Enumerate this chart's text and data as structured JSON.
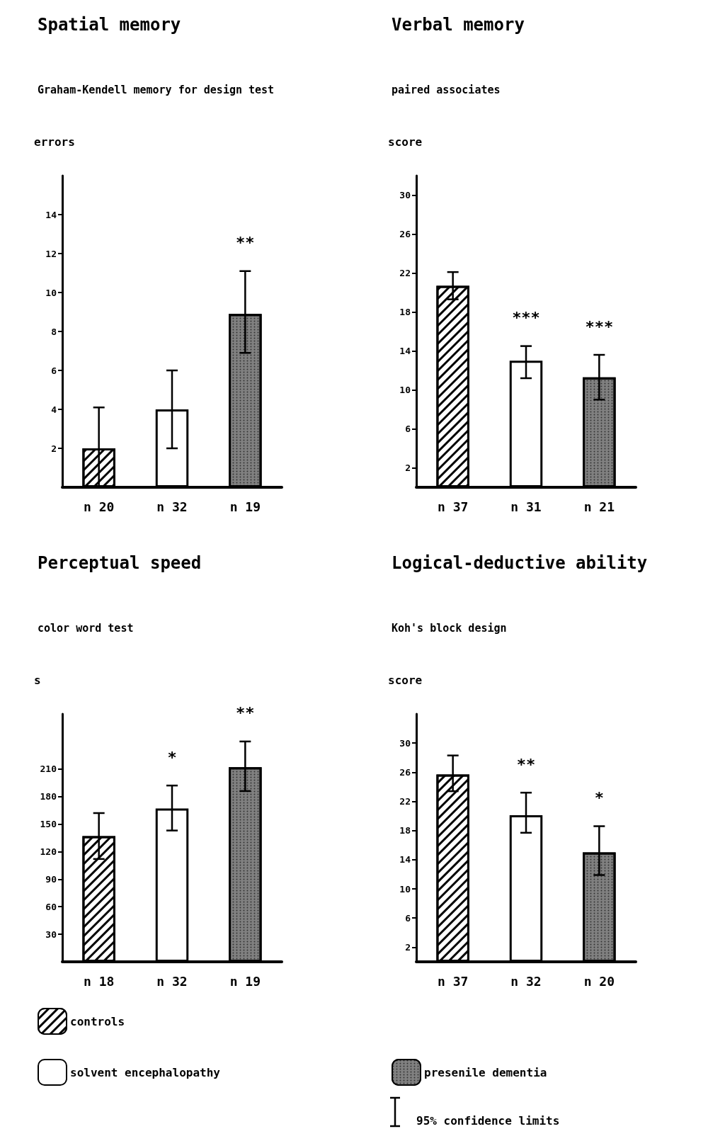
{
  "chart_data": [
    {
      "type": "bar",
      "title": "Spatial memory",
      "subtitle": "Graham-Kendell memory for design test",
      "ylabel": "errors",
      "categories": [
        "n 20",
        "n 32",
        "n 19"
      ],
      "ylim": [
        0,
        16
      ],
      "yticks": [
        2,
        4,
        6,
        8,
        10,
        12,
        14
      ],
      "series": [
        {
          "color": "#ffffff",
          "values": [
            2,
            null,
            null
          ],
          "errors": [
            [
              0,
              4.1
            ],
            null,
            null
          ]
        },
        {
          "color": "#ffffff",
          "values": [
            null,
            4,
            null
          ],
          "errors": [
            null,
            [
              2,
              6
            ],
            null
          ]
        },
        {
          "color": "#808080",
          "values": [
            null,
            null,
            8.9
          ],
          "errors": [
            null,
            null,
            [
              6.9,
              11.1
            ]
          ]
        }
      ],
      "annotations": [
        "**"
      ]
    },
    {
      "type": "bar",
      "title": "Verbal memory",
      "subtitle": "paired associates",
      "ylabel": "score",
      "categories": [
        "n 37",
        "n 31",
        "n 21"
      ],
      "ylim": [
        0,
        32
      ],
      "yticks": [
        2,
        6,
        10,
        14,
        18,
        22,
        26,
        30
      ],
      "series": [
        {
          "color": "#ffffff",
          "values": [
            20.7,
            null,
            null
          ],
          "errors": [
            [
              19.3,
              22.1
            ],
            null,
            null
          ]
        },
        {
          "color": "#ffffff",
          "values": [
            null,
            13,
            null
          ],
          "errors": [
            null,
            [
              11.2,
              14.5
            ],
            null
          ]
        },
        {
          "color": "#808080",
          "values": [
            null,
            null,
            11.3
          ],
          "errors": [
            null,
            null,
            [
              9,
              13.6
            ]
          ]
        }
      ],
      "annotations": [
        "***",
        "***"
      ]
    },
    {
      "type": "bar",
      "title": "Perceptual speed",
      "subtitle": "color word test",
      "ylabel": "s",
      "categories": [
        "n 18",
        "n 32",
        "n 19"
      ],
      "ylim": [
        0,
        270
      ],
      "yticks": [
        30,
        60,
        90,
        120,
        150,
        180,
        210
      ],
      "series": [
        {
          "name": "controls",
          "color": "#ffffff",
          "values": [
            137,
            null,
            null
          ],
          "errors": [
            [
              112,
              162
            ],
            null,
            null
          ]
        },
        {
          "name": "solvent encephalopathy",
          "color": "#ffffff",
          "values": [
            null,
            167,
            null
          ],
          "errors": [
            null,
            [
              143,
              192
            ],
            null
          ]
        },
        {
          "color": "#808080",
          "values": [
            null,
            null,
            212
          ],
          "errors": [
            null,
            null,
            [
              186,
              240
            ]
          ]
        }
      ],
      "annotations": [
        "*",
        "**"
      ],
      "legend": "bottom"
    },
    {
      "type": "bar",
      "title": "Logical-deductive ability",
      "subtitle": "Koh's block design",
      "ylabel": "score",
      "categories": [
        "n 37",
        "n 32",
        "n 20"
      ],
      "ylim": [
        0,
        34
      ],
      "yticks": [
        2,
        6,
        10,
        14,
        18,
        22,
        26,
        30
      ],
      "series": [
        {
          "color": "#ffffff",
          "values": [
            25.7,
            null,
            null
          ],
          "errors": [
            [
              23.4,
              28.3
            ],
            null,
            null
          ]
        },
        {
          "color": "#ffffff",
          "values": [
            null,
            20.1,
            null
          ],
          "errors": [
            null,
            [
              17.7,
              23.2
            ],
            null
          ]
        },
        {
          "name": "presenile dementia",
          "color": "#808080",
          "values": [
            null,
            null,
            15
          ],
          "errors": [
            null,
            null,
            [
              11.9,
              18.6
            ]
          ]
        }
      ],
      "annotations": [
        "**",
        "*",
        "95% confidence limits"
      ],
      "legend": "bottom"
    }
  ]
}
